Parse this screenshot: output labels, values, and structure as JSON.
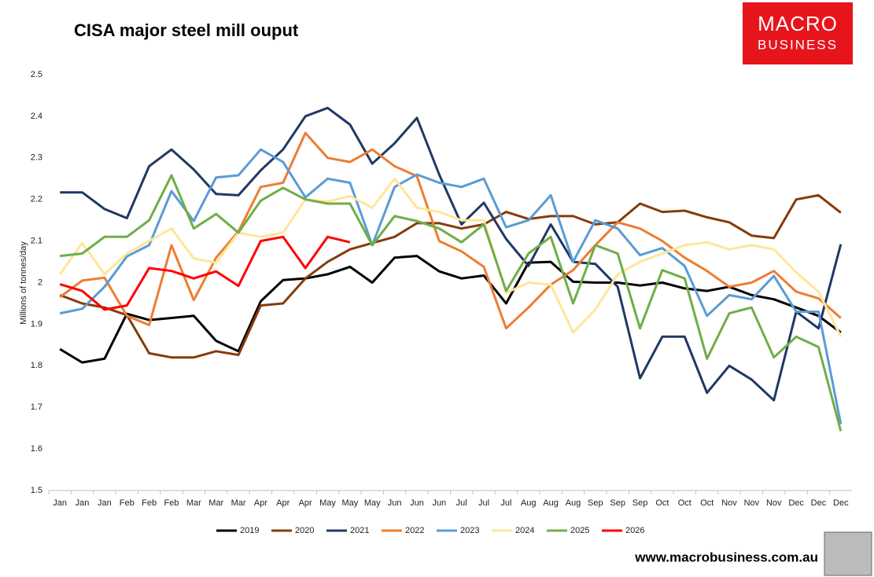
{
  "chart_data": {
    "type": "line",
    "title": "CISA major steel mill ouput",
    "ylabel": "Millions of tonnes/day",
    "logo": [
      "MACRO",
      "BUSINESS"
    ],
    "source": "www.macrobusiness.com.au",
    "categories": [
      "Jan",
      "Jan",
      "Jan",
      "Feb",
      "Feb",
      "Feb",
      "Mar",
      "Mar",
      "Mar",
      "Apr",
      "Apr",
      "Apr",
      "May",
      "May",
      "May",
      "Jun",
      "Jun",
      "Jun",
      "Jul",
      "Jul",
      "Jul",
      "Aug",
      "Aug",
      "Aug",
      "Sep",
      "Sep",
      "Sep",
      "Oct",
      "Oct",
      "Oct",
      "Nov",
      "Nov",
      "Nov",
      "Dec",
      "Dec",
      "Dec"
    ],
    "ylim": [
      1.5,
      2.5
    ],
    "yticks": [
      1.5,
      1.6,
      1.7,
      1.8,
      1.9,
      2,
      2.1,
      2.2,
      2.3,
      2.4,
      2.5
    ],
    "grid": false,
    "legend": "bottom",
    "series": [
      {
        "name": "2019",
        "color": "#000000",
        "values": [
          1.84,
          1.808,
          1.817,
          1.925,
          1.91,
          1.915,
          1.92,
          1.86,
          1.835,
          1.955,
          2.006,
          2.01,
          2.02,
          2.038,
          2.0,
          2.06,
          2.064,
          2.027,
          2.01,
          2.017,
          1.95,
          2.048,
          2.05,
          2.002,
          2.0,
          2.0,
          1.993,
          2.0,
          1.986,
          1.98,
          1.99,
          1.97,
          1.96,
          1.94,
          1.92,
          1.88
        ]
      },
      {
        "name": "2020",
        "color": "#843c0c",
        "values": [
          1.97,
          1.95,
          1.94,
          1.922,
          1.83,
          1.82,
          1.82,
          1.835,
          1.826,
          1.945,
          1.95,
          2.01,
          2.05,
          2.08,
          2.095,
          2.11,
          2.143,
          2.143,
          2.13,
          2.14,
          2.17,
          2.153,
          2.16,
          2.16,
          2.14,
          2.145,
          2.19,
          2.17,
          2.173,
          2.157,
          2.145,
          2.113,
          2.107,
          2.2,
          2.21,
          2.168
        ]
      },
      {
        "name": "2021",
        "color": "#203864",
        "values": [
          2.217,
          2.217,
          2.177,
          2.155,
          2.28,
          2.32,
          2.272,
          2.213,
          2.21,
          2.27,
          2.32,
          2.4,
          2.42,
          2.38,
          2.286,
          2.335,
          2.396,
          2.26,
          2.14,
          2.192,
          2.105,
          2.04,
          2.14,
          2.05,
          2.045,
          1.99,
          1.77,
          1.87,
          1.87,
          1.735,
          1.8,
          1.767,
          1.717,
          1.93,
          1.89,
          2.092
        ]
      },
      {
        "name": "2022",
        "color": "#ed7d31",
        "values": [
          1.965,
          2.005,
          2.012,
          1.92,
          1.898,
          2.09,
          1.958,
          2.06,
          2.123,
          2.23,
          2.24,
          2.36,
          2.3,
          2.29,
          2.32,
          2.28,
          2.256,
          2.1,
          2.075,
          2.038,
          1.89,
          1.94,
          1.995,
          2.03,
          2.09,
          2.145,
          2.13,
          2.1,
          2.06,
          2.028,
          1.99,
          2.0,
          2.028,
          1.978,
          1.962,
          1.915
        ]
      },
      {
        "name": "2023",
        "color": "#5b9bd5",
        "values": [
          1.926,
          1.937,
          1.99,
          2.063,
          2.09,
          2.22,
          2.148,
          2.253,
          2.258,
          2.32,
          2.29,
          2.205,
          2.25,
          2.24,
          2.09,
          2.23,
          2.26,
          2.24,
          2.23,
          2.25,
          2.133,
          2.15,
          2.21,
          2.05,
          2.15,
          2.13,
          2.066,
          2.083,
          2.04,
          1.92,
          1.97,
          1.96,
          2.016,
          1.93,
          1.93,
          1.66
        ]
      },
      {
        "name": "2024",
        "color": "#ffe699",
        "values": [
          2.02,
          2.095,
          2.02,
          2.07,
          2.1,
          2.13,
          2.058,
          2.048,
          2.12,
          2.11,
          2.12,
          2.2,
          2.195,
          2.208,
          2.18,
          2.25,
          2.18,
          2.17,
          2.15,
          2.15,
          1.975,
          2.0,
          1.995,
          1.88,
          1.935,
          2.02,
          2.05,
          2.07,
          2.09,
          2.097,
          2.08,
          2.09,
          2.08,
          2.025,
          1.978,
          1.87
        ]
      },
      {
        "name": "2025",
        "color": "#70ad47",
        "values": [
          2.064,
          2.07,
          2.11,
          2.11,
          2.15,
          2.258,
          2.13,
          2.165,
          2.12,
          2.197,
          2.228,
          2.2,
          2.19,
          2.19,
          2.09,
          2.16,
          2.148,
          2.13,
          2.097,
          2.14,
          1.98,
          2.07,
          2.11,
          1.95,
          2.09,
          2.07,
          1.89,
          2.03,
          2.01,
          1.817,
          1.926,
          1.94,
          1.82,
          1.87,
          1.845,
          1.643
        ]
      },
      {
        "name": "2026",
        "color": "#ff0000",
        "values": [
          1.996,
          1.98,
          1.935,
          1.945,
          2.035,
          2.028,
          2.01,
          2.027,
          1.992,
          2.1,
          2.11,
          2.035,
          2.11,
          2.097,
          null,
          null,
          null,
          null,
          null,
          null,
          null,
          null,
          null,
          null,
          null,
          null,
          null,
          null,
          null,
          null,
          null,
          null,
          null,
          null,
          null,
          null
        ]
      }
    ]
  }
}
